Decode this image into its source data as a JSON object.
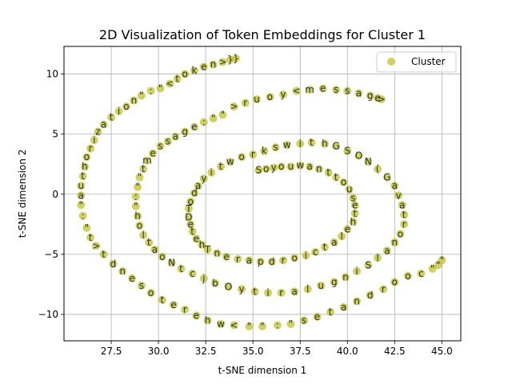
{
  "chart_data": {
    "type": "scatter",
    "title": "2D Visualization of Token Embeddings for Cluster 1",
    "xlabel": "t-SNE dimension 1",
    "ylabel": "t-SNE dimension 2",
    "xlim": [
      25.0,
      46.0
    ],
    "ylim": [
      -12.2,
      12.3
    ],
    "xticks": [
      27.5,
      30.0,
      32.5,
      35.0,
      37.5,
      40.0,
      42.5,
      45.0
    ],
    "xtick_labels": [
      "27.5",
      "30.0",
      "32.5",
      "35.0",
      "37.5",
      "40.0",
      "42.5",
      "45.0"
    ],
    "yticks": [
      -10,
      -5,
      0,
      5,
      10
    ],
    "ytick_labels": [
      "−10",
      "−5",
      "0",
      "5",
      "10"
    ],
    "grid": true,
    "legend_position": "top-right",
    "series": [
      {
        "name": "Cluster",
        "color": "#bcbd22",
        "points": [
          {
            "x": 34.1,
            "y": 11.3,
            "label": "}"
          },
          {
            "x": 33.8,
            "y": 11.2,
            "label": "}"
          },
          {
            "x": 33.4,
            "y": 11.0,
            "label": ">"
          },
          {
            "x": 32.9,
            "y": 10.8,
            "label": "n"
          },
          {
            "x": 32.4,
            "y": 10.6,
            "label": "e"
          },
          {
            "x": 31.9,
            "y": 10.3,
            "label": "k"
          },
          {
            "x": 31.4,
            "y": 10.0,
            "label": "o"
          },
          {
            "x": 31.0,
            "y": 9.6,
            "label": "t"
          },
          {
            "x": 30.6,
            "y": 9.2,
            "label": "<"
          },
          {
            "x": 30.1,
            "y": 8.8,
            "label": "\""
          },
          {
            "x": 29.6,
            "y": 8.6,
            "label": ":"
          },
          {
            "x": 29.1,
            "y": 8.2,
            "label": "\""
          },
          {
            "x": 28.7,
            "y": 7.8,
            "label": "n"
          },
          {
            "x": 28.3,
            "y": 7.3,
            "label": "o"
          },
          {
            "x": 27.9,
            "y": 6.9,
            "label": "i"
          },
          {
            "x": 27.5,
            "y": 6.4,
            "label": "t"
          },
          {
            "x": 27.1,
            "y": 5.8,
            "label": "a"
          },
          {
            "x": 26.8,
            "y": 5.2,
            "label": "z"
          },
          {
            "x": 26.6,
            "y": 4.5,
            "label": "i"
          },
          {
            "x": 26.4,
            "y": 3.8,
            "label": "r"
          },
          {
            "x": 26.2,
            "y": 3.1,
            "label": "o"
          },
          {
            "x": 26.1,
            "y": 2.3,
            "label": "h"
          },
          {
            "x": 26.0,
            "y": 1.5,
            "label": "t"
          },
          {
            "x": 25.9,
            "y": 0.7,
            "label": "u"
          },
          {
            "x": 25.9,
            "y": -0.1,
            "label": "a"
          },
          {
            "x": 25.9,
            "y": -0.9,
            "label": "\""
          },
          {
            "x": 26.0,
            "y": -1.8,
            "label": ":"
          },
          {
            "x": 26.2,
            "y": -2.8,
            "label": "\""
          },
          {
            "x": 26.4,
            "y": -3.6,
            "label": "t"
          },
          {
            "x": 26.7,
            "y": -4.3,
            "label": ">"
          },
          {
            "x": 27.1,
            "y": -5.0,
            "label": "t"
          },
          {
            "x": 27.6,
            "y": -5.8,
            "label": "d"
          },
          {
            "x": 28.1,
            "y": -6.4,
            "label": "n"
          },
          {
            "x": 28.6,
            "y": -7.0,
            "label": "e"
          },
          {
            "x": 29.1,
            "y": -7.6,
            "label": "s"
          },
          {
            "x": 29.6,
            "y": -8.2,
            "label": "o"
          },
          {
            "x": 30.2,
            "y": -8.8,
            "label": "t"
          },
          {
            "x": 30.8,
            "y": -9.2,
            "label": "e"
          },
          {
            "x": 31.4,
            "y": -9.6,
            "label": "r"
          },
          {
            "x": 32.0,
            "y": -10.1,
            "label": "e"
          },
          {
            "x": 32.6,
            "y": -10.5,
            "label": "h"
          },
          {
            "x": 33.3,
            "y": -10.8,
            "label": "w"
          },
          {
            "x": 34.0,
            "y": -10.9,
            "label": "<"
          },
          {
            "x": 34.8,
            "y": -11.0,
            "label": "\""
          },
          {
            "x": 35.5,
            "y": -11.0,
            "label": "\""
          },
          {
            "x": 36.3,
            "y": -10.9,
            "label": ":"
          },
          {
            "x": 37.0,
            "y": -10.8,
            "label": "\""
          },
          {
            "x": 37.7,
            "y": -10.5,
            "label": "s"
          },
          {
            "x": 38.4,
            "y": -10.2,
            "label": "e"
          },
          {
            "x": 39.1,
            "y": -9.8,
            "label": "t"
          },
          {
            "x": 39.8,
            "y": -9.4,
            "label": "a"
          },
          {
            "x": 40.5,
            "y": -8.9,
            "label": "n"
          },
          {
            "x": 41.2,
            "y": -8.4,
            "label": "d"
          },
          {
            "x": 41.9,
            "y": -7.9,
            "label": "r"
          },
          {
            "x": 42.5,
            "y": -7.3,
            "label": "o"
          },
          {
            "x": 43.2,
            "y": -6.8,
            "label": "o"
          },
          {
            "x": 43.9,
            "y": -6.6,
            "label": "c"
          },
          {
            "x": 44.5,
            "y": -6.2,
            "label": "\""
          },
          {
            "x": 44.8,
            "y": -5.9,
            "label": "\""
          },
          {
            "x": 45.0,
            "y": -5.5,
            "label": "\""
          },
          {
            "x": 34.0,
            "y": 7.3,
            "label": ">"
          },
          {
            "x": 34.6,
            "y": 7.6,
            "label": "r"
          },
          {
            "x": 35.2,
            "y": 7.9,
            "label": "u"
          },
          {
            "x": 35.9,
            "y": 8.1,
            "label": "o"
          },
          {
            "x": 36.6,
            "y": 8.3,
            "label": "y"
          },
          {
            "x": 37.3,
            "y": 8.6,
            "label": "<"
          },
          {
            "x": 38.0,
            "y": 8.7,
            "label": "m"
          },
          {
            "x": 38.7,
            "y": 8.8,
            "label": "e"
          },
          {
            "x": 39.4,
            "y": 8.7,
            "label": "s"
          },
          {
            "x": 40.0,
            "y": 8.6,
            "label": "s"
          },
          {
            "x": 40.6,
            "y": 8.4,
            "label": "a"
          },
          {
            "x": 41.2,
            "y": 8.2,
            "label": "g"
          },
          {
            "x": 41.6,
            "y": 8.0,
            "label": "e"
          },
          {
            "x": 41.8,
            "y": 7.9,
            "label": ">"
          },
          {
            "x": 33.4,
            "y": 6.6,
            "label": "\""
          },
          {
            "x": 32.9,
            "y": 6.3,
            "label": "\""
          },
          {
            "x": 32.4,
            "y": 6.0,
            "label": ":"
          },
          {
            "x": 31.9,
            "y": 5.6,
            "label": "e"
          },
          {
            "x": 31.4,
            "y": 5.2,
            "label": "g"
          },
          {
            "x": 30.9,
            "y": 4.8,
            "label": "a"
          },
          {
            "x": 30.5,
            "y": 4.4,
            "label": "s"
          },
          {
            "x": 30.1,
            "y": 4.0,
            "label": "s"
          },
          {
            "x": 29.7,
            "y": 3.4,
            "label": "e"
          },
          {
            "x": 29.4,
            "y": 2.8,
            "label": "m"
          },
          {
            "x": 29.2,
            "y": 2.1,
            "label": "t"
          },
          {
            "x": 29.0,
            "y": 1.4,
            "label": "\""
          },
          {
            "x": 28.9,
            "y": 0.6,
            "label": "\""
          },
          {
            "x": 28.8,
            "y": -0.2,
            "label": ":"
          },
          {
            "x": 28.8,
            "y": -1.0,
            "label": "\""
          },
          {
            "x": 28.9,
            "y": -1.8,
            "label": "h"
          },
          {
            "x": 29.0,
            "y": -2.6,
            "label": "o"
          },
          {
            "x": 29.2,
            "y": -3.4,
            "label": "l"
          },
          {
            "x": 29.5,
            "y": -4.0,
            "label": "t"
          },
          {
            "x": 29.8,
            "y": -4.6,
            "label": "a"
          },
          {
            "x": 30.2,
            "y": -5.2,
            "label": "o"
          },
          {
            "x": 30.7,
            "y": -5.7,
            "label": "N"
          },
          {
            "x": 31.2,
            "y": -6.2,
            "label": "t"
          },
          {
            "x": 31.8,
            "y": -6.6,
            "label": "c"
          },
          {
            "x": 32.4,
            "y": -7.0,
            "label": "j"
          },
          {
            "x": 33.0,
            "y": -7.4,
            "label": "b"
          },
          {
            "x": 33.7,
            "y": -7.7,
            "label": "O"
          },
          {
            "x": 34.4,
            "y": -7.9,
            "label": "y"
          },
          {
            "x": 35.1,
            "y": -8.1,
            "label": "t"
          },
          {
            "x": 35.8,
            "y": -8.2,
            "label": "i"
          },
          {
            "x": 36.5,
            "y": -8.2,
            "label": "r"
          },
          {
            "x": 37.2,
            "y": -8.1,
            "label": "a"
          },
          {
            "x": 37.9,
            "y": -7.9,
            "label": "l"
          },
          {
            "x": 38.6,
            "y": -7.6,
            "label": "u"
          },
          {
            "x": 39.3,
            "y": -7.3,
            "label": "g"
          },
          {
            "x": 39.9,
            "y": -6.9,
            "label": "n"
          },
          {
            "x": 40.5,
            "y": -6.4,
            "label": "i"
          },
          {
            "x": 41.1,
            "y": -5.9,
            "label": "S"
          },
          {
            "x": 41.6,
            "y": -5.3,
            "label": "l"
          },
          {
            "x": 42.1,
            "y": -4.7,
            "label": "a"
          },
          {
            "x": 42.5,
            "y": -4.0,
            "label": "n"
          },
          {
            "x": 42.8,
            "y": -3.3,
            "label": "o"
          },
          {
            "x": 43.0,
            "y": -2.5,
            "label": "r"
          },
          {
            "x": 43.0,
            "y": -1.7,
            "label": "t"
          },
          {
            "x": 42.9,
            "y": -0.9,
            "label": "a"
          },
          {
            "x": 42.7,
            "y": -0.1,
            "label": "v"
          },
          {
            "x": 42.5,
            "y": 0.7,
            "label": "a"
          },
          {
            "x": 42.1,
            "y": 1.4,
            "label": "G"
          },
          {
            "x": 41.6,
            "y": 2.1,
            "label": "("
          },
          {
            "x": 41.1,
            "y": 2.7,
            "label": "N"
          },
          {
            "x": 40.6,
            "y": 3.2,
            "label": "O"
          },
          {
            "x": 40.0,
            "y": 3.6,
            "label": "S"
          },
          {
            "x": 39.4,
            "y": 4.0,
            "label": "G"
          },
          {
            "x": 38.8,
            "y": 4.2,
            "label": "h"
          },
          {
            "x": 38.1,
            "y": 4.3,
            "label": "t"
          },
          {
            "x": 37.5,
            "y": 4.2,
            "label": "i"
          },
          {
            "x": 36.8,
            "y": 4.1,
            "label": "w"
          },
          {
            "x": 36.2,
            "y": 3.9,
            "label": "s"
          },
          {
            "x": 35.6,
            "y": 3.6,
            "label": "k"
          },
          {
            "x": 35.0,
            "y": 3.3,
            "label": "r"
          },
          {
            "x": 34.4,
            "y": 3.1,
            "label": "o"
          },
          {
            "x": 33.8,
            "y": 2.7,
            "label": "w"
          },
          {
            "x": 33.3,
            "y": 2.3,
            "label": "t"
          },
          {
            "x": 32.8,
            "y": 1.8,
            "label": "i"
          },
          {
            "x": 32.4,
            "y": 1.3,
            "label": "y"
          },
          {
            "x": 32.1,
            "y": 0.7,
            "label": "a"
          },
          {
            "x": 31.9,
            "y": 0.1,
            "label": "d"
          },
          {
            "x": 31.7,
            "y": -0.6,
            "label": "o"
          },
          {
            "x": 31.6,
            "y": -1.2,
            "label": "T"
          },
          {
            "x": 31.6,
            "y": -1.9,
            "label": "D"
          },
          {
            "x": 31.7,
            "y": -2.5,
            "label": "e"
          },
          {
            "x": 31.8,
            "y": -3.1,
            "label": "t"
          },
          {
            "x": 32.0,
            "y": -3.7,
            "label": "e"
          },
          {
            "x": 32.3,
            "y": -4.2,
            "label": "h"
          },
          {
            "x": 32.6,
            "y": -4.6,
            "label": "T"
          },
          {
            "x": 33.1,
            "y": -4.9,
            "label": "n"
          },
          {
            "x": 33.6,
            "y": -5.2,
            "label": "e"
          },
          {
            "x": 34.2,
            "y": -5.4,
            "label": "r"
          },
          {
            "x": 34.8,
            "y": -5.5,
            "label": "a"
          },
          {
            "x": 35.4,
            "y": -5.6,
            "label": "p"
          },
          {
            "x": 36.0,
            "y": -5.6,
            "label": "d"
          },
          {
            "x": 36.6,
            "y": -5.5,
            "label": "r"
          },
          {
            "x": 37.2,
            "y": -5.3,
            "label": "o"
          },
          {
            "x": 37.8,
            "y": -5.1,
            "label": "i"
          },
          {
            "x": 38.3,
            "y": -4.8,
            "label": "c"
          },
          {
            "x": 38.8,
            "y": -4.4,
            "label": "t"
          },
          {
            "x": 39.3,
            "y": -4.0,
            "label": "a"
          },
          {
            "x": 39.7,
            "y": -3.5,
            "label": "l"
          },
          {
            "x": 40.0,
            "y": -2.9,
            "label": "e"
          },
          {
            "x": 40.3,
            "y": -2.3,
            "label": "h"
          },
          {
            "x": 40.4,
            "y": -1.6,
            "label": "t"
          },
          {
            "x": 40.4,
            "y": -0.9,
            "label": "e"
          },
          {
            "x": 40.3,
            "y": -0.3,
            "label": "s"
          },
          {
            "x": 40.1,
            "y": 0.4,
            "label": "u"
          },
          {
            "x": 39.8,
            "y": 1.0,
            "label": "o"
          },
          {
            "x": 39.4,
            "y": 1.4,
            "label": "t"
          },
          {
            "x": 39.0,
            "y": 1.8,
            "label": "t"
          },
          {
            "x": 38.5,
            "y": 2.1,
            "label": "n"
          },
          {
            "x": 38.0,
            "y": 2.3,
            "label": "a"
          },
          {
            "x": 37.5,
            "y": 2.4,
            "label": "w"
          },
          {
            "x": 37.0,
            "y": 2.3,
            "label": "u"
          },
          {
            "x": 36.5,
            "y": 2.3,
            "label": "o"
          },
          {
            "x": 36.1,
            "y": 2.2,
            "label": "y"
          },
          {
            "x": 35.7,
            "y": 2.1,
            "label": "o"
          },
          {
            "x": 35.3,
            "y": 2.0,
            "label": "S"
          }
        ]
      }
    ]
  }
}
